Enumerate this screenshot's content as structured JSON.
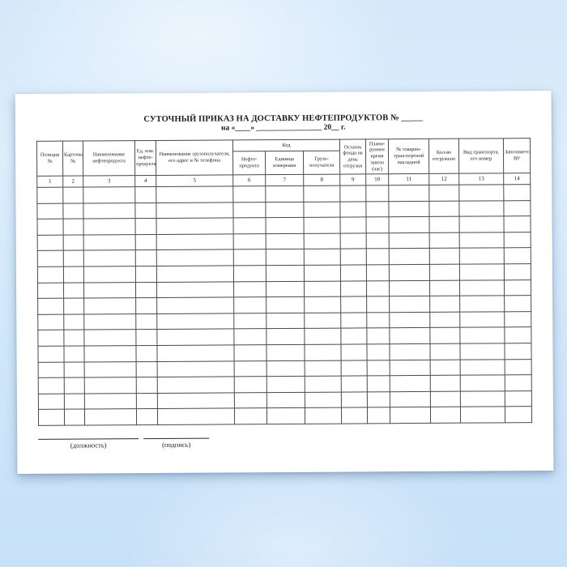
{
  "document": {
    "title": "СУТОЧНЫЙ ПРИКАЗ НА ДОСТАВКУ НЕФТЕПРОДУКТОВ № _____",
    "date_line": "на «____» _________________ 20__ г."
  },
  "table": {
    "group_code": "Код",
    "columns": [
      "Позиция №",
      "Карточка №",
      "Наименование нефтепродукта",
      "Ед. изм. нефте-продукта",
      "Наименование грузополучателя, его адрес и № телефона",
      "Нефте-продукта",
      "Единица измерения",
      "Грузо-получателя",
      "Остаток фонда на день отгрузки",
      "Плани-руемое время завоза (час)",
      "№ товарно-транспортной накладной",
      "Кол-во отгружено",
      "Вид транспорта, его номер",
      "Заполняется ВУ"
    ],
    "numbers": [
      "1",
      "2",
      "3",
      "4",
      "5",
      "6",
      "7",
      "8",
      "9",
      "10",
      "11",
      "12",
      "13",
      "14"
    ],
    "empty_row_count": 15
  },
  "footer": {
    "position_label": "(должность)",
    "signature_label": "(подпись)"
  },
  "colors": {
    "background_top": "#d4e8fa",
    "background_bottom": "#c7e1f8",
    "page": "#ffffff",
    "table_border": "#4a4a4a",
    "text": "#1b1b1b"
  }
}
